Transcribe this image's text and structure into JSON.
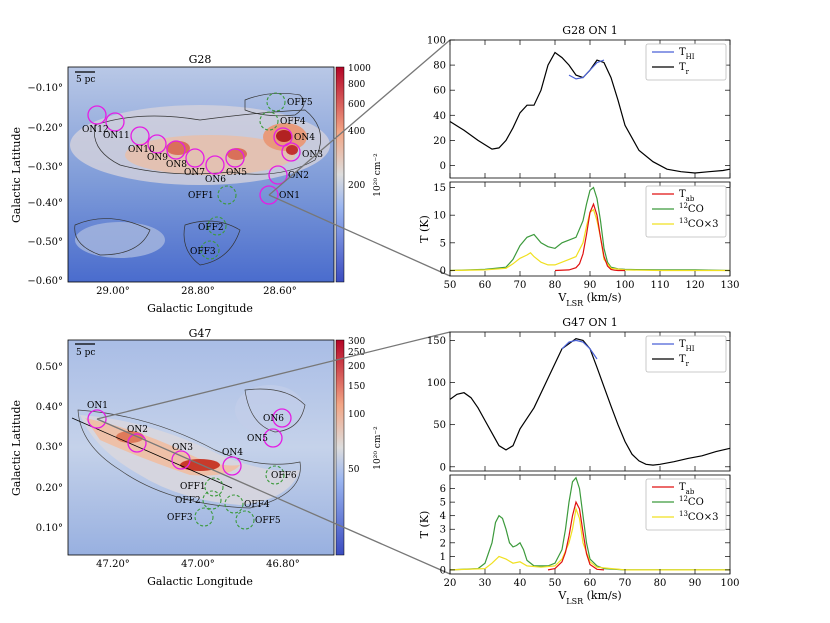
{
  "maps": {
    "g28": {
      "title": "G28",
      "scalebar": "5 pc",
      "xlabel": "Galactic Longitude",
      "ylabel": "Galactic Latitude",
      "xticks": [
        "29.00°",
        "28.80°",
        "28.60°"
      ],
      "yticks": [
        "−0.10°",
        "−0.20°",
        "−0.30°",
        "−0.40°",
        "−0.50°",
        "−0.60°"
      ],
      "colorbar": {
        "ticks": [
          "1000",
          "800",
          "600",
          "400",
          "200"
        ],
        "label": "10²⁰ cm⁻²"
      },
      "on_labels": [
        "ON12",
        "ON11",
        "ON10",
        "ON9",
        "ON8",
        "ON7",
        "ON6",
        "ON5",
        "ON4",
        "ON3",
        "ON2",
        "ON1"
      ],
      "off_labels": [
        "OFF5",
        "OFF4",
        "OFF3",
        "OFF2",
        "OFF1"
      ]
    },
    "g47": {
      "title": "G47",
      "scalebar": "5 pc",
      "xlabel": "Galactic Longitude",
      "ylabel": "Galactic Latitude",
      "xticks": [
        "47.20°",
        "47.00°",
        "46.80°"
      ],
      "yticks": [
        "0.50°",
        "0.40°",
        "0.30°",
        "0.20°",
        "0.10°"
      ],
      "colorbar": {
        "ticks": [
          "300",
          "250",
          "200",
          "150",
          "100",
          "50"
        ],
        "label": "10²⁰ cm⁻²"
      },
      "on_labels": [
        "ON1",
        "ON2",
        "ON3",
        "ON4",
        "ON5",
        "ON6"
      ],
      "off_labels": [
        "OFF1",
        "OFF2",
        "OFF3",
        "OFF4",
        "OFF5",
        "OFF6"
      ]
    }
  },
  "chart_data": [
    {
      "type": "line",
      "title": "G28 ON 1",
      "ylabel": "",
      "xlim": [
        50,
        130
      ],
      "ylim": [
        -10,
        100
      ],
      "yticks": [
        0,
        20,
        40,
        60,
        80,
        100
      ],
      "legend": [
        "T_HI",
        "T_r"
      ],
      "series": [
        {
          "name": "T_r",
          "color": "#000000",
          "x": [
            50,
            54,
            58,
            62,
            64,
            66,
            68,
            70,
            72,
            74,
            76,
            78,
            80,
            82,
            84,
            86,
            88,
            90,
            92,
            94,
            96,
            98,
            100,
            104,
            108,
            112,
            116,
            120,
            124,
            128,
            130
          ],
          "y": [
            35,
            28,
            20,
            13,
            14,
            20,
            30,
            42,
            48,
            48,
            60,
            80,
            90,
            86,
            80,
            72,
            70,
            76,
            84,
            82,
            70,
            52,
            32,
            12,
            3,
            -3,
            -5,
            -6,
            -5,
            -4,
            -3
          ]
        },
        {
          "name": "T_HI",
          "color": "#4a62d8",
          "x": [
            84,
            86,
            88,
            90,
            92,
            94
          ],
          "y": [
            72,
            69,
            70,
            76,
            82,
            84
          ]
        }
      ]
    },
    {
      "type": "line",
      "title": "",
      "ylabel": "T (K)",
      "xlim": [
        50,
        130
      ],
      "ylim": [
        -1,
        16
      ],
      "yticks": [
        0,
        5,
        10,
        15
      ],
      "xticks": [
        50,
        60,
        70,
        80,
        90,
        100,
        110,
        120,
        130
      ],
      "xlabel": "V_LSR (km/s)",
      "legend": [
        "T_ab",
        "12CO",
        "13CO×3"
      ],
      "series": [
        {
          "name": "12CO",
          "color": "#3c9a3c",
          "x": [
            50,
            60,
            66,
            68,
            70,
            72,
            74,
            76,
            78,
            80,
            82,
            84,
            86,
            88,
            89,
            90,
            91,
            92,
            93,
            94,
            95,
            96,
            98,
            100,
            110,
            120,
            130
          ],
          "y": [
            0,
            0.2,
            0.6,
            2,
            4.5,
            6,
            6.5,
            5,
            4.3,
            4,
            5,
            5.5,
            6,
            9,
            12,
            14.5,
            15,
            13,
            9,
            4,
            1.5,
            0.6,
            0.3,
            0.2,
            0.1,
            0.1,
            0
          ]
        },
        {
          "name": "13CO×3",
          "color": "#f0e020",
          "x": [
            50,
            60,
            66,
            68,
            70,
            72,
            73,
            74,
            76,
            78,
            80,
            82,
            84,
            86,
            88,
            89,
            90,
            91,
            92,
            93,
            94,
            96,
            100,
            110,
            130
          ],
          "y": [
            0,
            0.1,
            0.4,
            1.2,
            2.2,
            2.8,
            3.2,
            2.5,
            1.5,
            1,
            1,
            1.5,
            2,
            2.5,
            5,
            8,
            10.5,
            11,
            9,
            6,
            2,
            0.4,
            0.1,
            0,
            0
          ]
        },
        {
          "name": "T_ab",
          "color": "#e01010",
          "x": [
            80,
            84,
            86,
            87,
            88,
            89,
            90,
            91,
            92,
            93,
            94,
            95,
            96,
            97,
            98,
            100
          ],
          "y": [
            0,
            0.1,
            0.5,
            1.2,
            3,
            6.5,
            10.5,
            12,
            10,
            6,
            2.5,
            0.8,
            0.2,
            0.05,
            0,
            0
          ]
        }
      ]
    },
    {
      "type": "line",
      "title": "G47 ON 1",
      "ylabel": "",
      "xlim": [
        20,
        100
      ],
      "ylim": [
        -5,
        160
      ],
      "yticks": [
        0,
        50,
        100,
        150
      ],
      "legend": [
        "T_HI",
        "T_r"
      ],
      "series": [
        {
          "name": "T_r",
          "color": "#000000",
          "x": [
            20,
            22,
            24,
            26,
            28,
            30,
            32,
            34,
            36,
            38,
            40,
            44,
            48,
            52,
            56,
            58,
            60,
            62,
            64,
            66,
            68,
            70,
            72,
            74,
            76,
            78,
            80,
            84,
            88,
            92,
            96,
            100
          ],
          "y": [
            80,
            86,
            88,
            82,
            70,
            55,
            40,
            25,
            20,
            25,
            45,
            70,
            105,
            140,
            152,
            150,
            140,
            118,
            95,
            72,
            50,
            30,
            15,
            7,
            3,
            2,
            3,
            6,
            10,
            13,
            18,
            22
          ]
        },
        {
          "name": "T_HI",
          "color": "#4a62d8",
          "x": [
            52,
            54,
            56,
            58,
            60,
            62
          ],
          "y": [
            140,
            148,
            150,
            148,
            140,
            128
          ]
        }
      ]
    },
    {
      "type": "line",
      "title": "",
      "ylabel": "T (K)",
      "xlim": [
        20,
        100
      ],
      "ylim": [
        -0.3,
        7
      ],
      "yticks": [
        0,
        1,
        2,
        3,
        4,
        5,
        6
      ],
      "xticks": [
        20,
        30,
        40,
        50,
        60,
        70,
        80,
        90,
        100
      ],
      "xlabel": "V_LSR (km/s)",
      "legend": [
        "T_ab",
        "12CO",
        "13CO×3"
      ],
      "series": [
        {
          "name": "12CO",
          "color": "#3c9a3c",
          "x": [
            20,
            28,
            30,
            32,
            33,
            34,
            35,
            36,
            37,
            38,
            39,
            40,
            41,
            42,
            44,
            48,
            50,
            52,
            53,
            54,
            55,
            56,
            57,
            58,
            59,
            60,
            62,
            64,
            70,
            80,
            90,
            100
          ],
          "y": [
            0,
            0.1,
            0.5,
            2,
            3.5,
            4,
            3.8,
            3,
            2,
            1.7,
            1.8,
            2,
            1.5,
            0.7,
            0.3,
            0.3,
            0.5,
            1.5,
            3,
            5,
            6.5,
            6.8,
            6,
            4,
            2,
            0.8,
            0.3,
            0.1,
            0,
            0,
            0,
            0
          ]
        },
        {
          "name": "13CO×3",
          "color": "#f0e020",
          "x": [
            20,
            30,
            32,
            34,
            36,
            38,
            40,
            42,
            46,
            50,
            52,
            54,
            55,
            56,
            57,
            58,
            60,
            62,
            70,
            80,
            100
          ],
          "y": [
            0,
            0.1,
            0.5,
            1,
            0.8,
            0.5,
            0.6,
            0.3,
            0.2,
            0.3,
            0.8,
            2,
            3,
            4.5,
            3.8,
            2,
            0.6,
            0.2,
            0,
            0,
            0
          ]
        },
        {
          "name": "T_ab",
          "color": "#e01010",
          "x": [
            48,
            50,
            52,
            53,
            54,
            55,
            56,
            57,
            58,
            59,
            60,
            62,
            64
          ],
          "y": [
            0,
            0.1,
            0.6,
            1.3,
            2.5,
            4,
            5,
            4.5,
            2.8,
            1.2,
            0.4,
            0.05,
            0
          ]
        }
      ]
    }
  ]
}
